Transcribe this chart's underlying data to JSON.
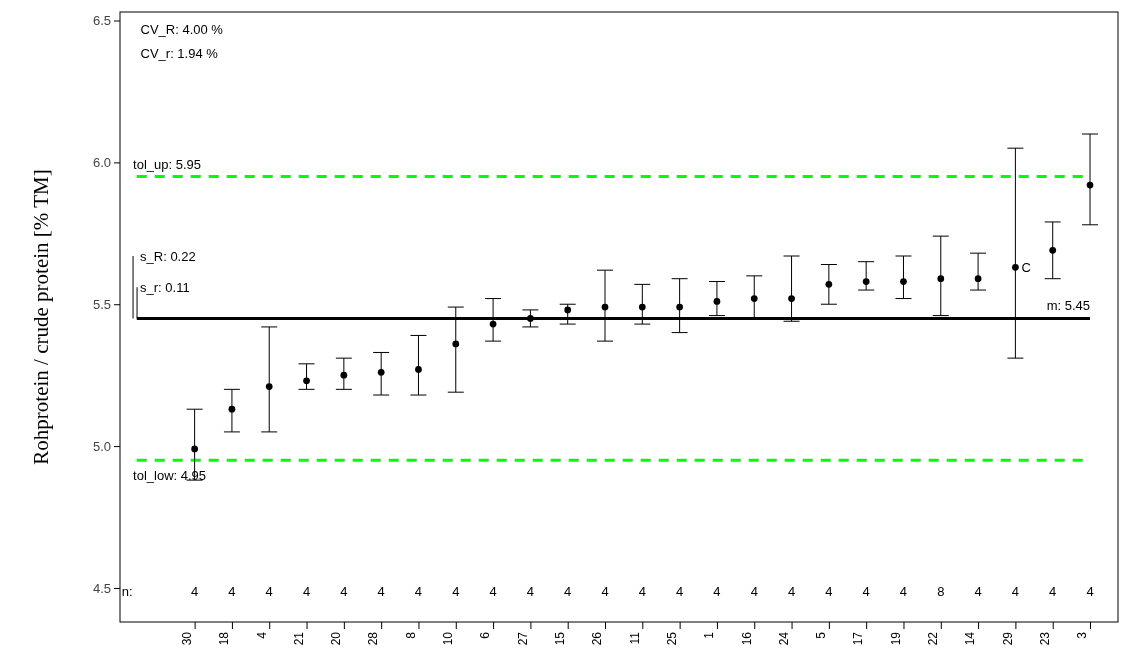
{
  "chart_data": {
    "type": "scatter",
    "ylabel": "Rohprotein / crude protein [% TM]",
    "categories": [
      "30",
      "18",
      "4",
      "21",
      "20",
      "28",
      "8",
      "10",
      "6",
      "27",
      "15",
      "26",
      "11",
      "25",
      "1",
      "16",
      "24",
      "5",
      "17",
      "19",
      "22",
      "14",
      "29",
      "23",
      "3"
    ],
    "series": [
      {
        "color": "#000000",
        "values": [
          4.99,
          5.13,
          5.21,
          5.23,
          5.25,
          5.26,
          5.27,
          5.36,
          5.43,
          5.45,
          5.48,
          5.49,
          5.49,
          5.49,
          5.51,
          5.52,
          5.52,
          5.57,
          5.58,
          5.58,
          5.59,
          5.59,
          5.63,
          5.69,
          5.92
        ],
        "errors": [
          [
            4.88,
            5.13
          ],
          [
            5.05,
            5.2
          ],
          [
            5.05,
            5.42
          ],
          [
            5.2,
            5.29
          ],
          [
            5.2,
            5.31
          ],
          [
            5.18,
            5.33
          ],
          [
            5.18,
            5.39
          ],
          [
            5.19,
            5.49
          ],
          [
            5.37,
            5.52
          ],
          [
            5.42,
            5.48
          ],
          [
            5.43,
            5.5
          ],
          [
            5.37,
            5.62
          ],
          [
            5.43,
            5.57
          ],
          [
            5.4,
            5.59
          ],
          [
            5.46,
            5.58
          ],
          [
            5.45,
            5.6
          ],
          [
            5.44,
            5.67
          ],
          [
            5.5,
            5.64
          ],
          [
            5.55,
            5.65
          ],
          [
            5.52,
            5.67
          ],
          [
            5.46,
            5.74
          ],
          [
            5.55,
            5.68
          ],
          [
            5.31,
            6.05
          ],
          [
            5.59,
            5.79
          ],
          [
            5.78,
            6.1
          ]
        ]
      }
    ],
    "marker": "circle",
    "ylim": [
      4.38,
      6.53
    ],
    "yticks": [
      4.5,
      {
        "value": 5,
        "label": "5.0"
      },
      5.5,
      {
        "value": 6,
        "label": "6.0"
      },
      6.5
    ],
    "ref_lines": [
      {
        "axis": "y",
        "value": 5.95,
        "label": "tol_up:  5.95",
        "color": "#00ff00",
        "line_style": "dashed"
      },
      {
        "axis": "y",
        "value": 5.45,
        "label": "m:  5.45",
        "color": "#000000",
        "line_style": "solid"
      },
      {
        "axis": "y",
        "value": 4.95,
        "label": "tol_low:  4.95",
        "color": "#00ff00",
        "line_style": "dashed"
      }
    ],
    "annotations": [
      "CV_R:  4.00 %",
      "CV_r:   1.94 %",
      "s_R:  0.22",
      "s_r:  0.11",
      "n:",
      "4",
      "4",
      "4",
      "4",
      "4",
      "4",
      "4",
      "4",
      "4",
      "4",
      "4",
      "4",
      "4",
      "4",
      "4",
      "4",
      "4",
      "4",
      "4",
      "4",
      "8",
      "4",
      "4",
      "4",
      "4",
      {
        "text": "C",
        "x": "29",
        "y": 5.63
      }
    ],
    "grid": false
  }
}
